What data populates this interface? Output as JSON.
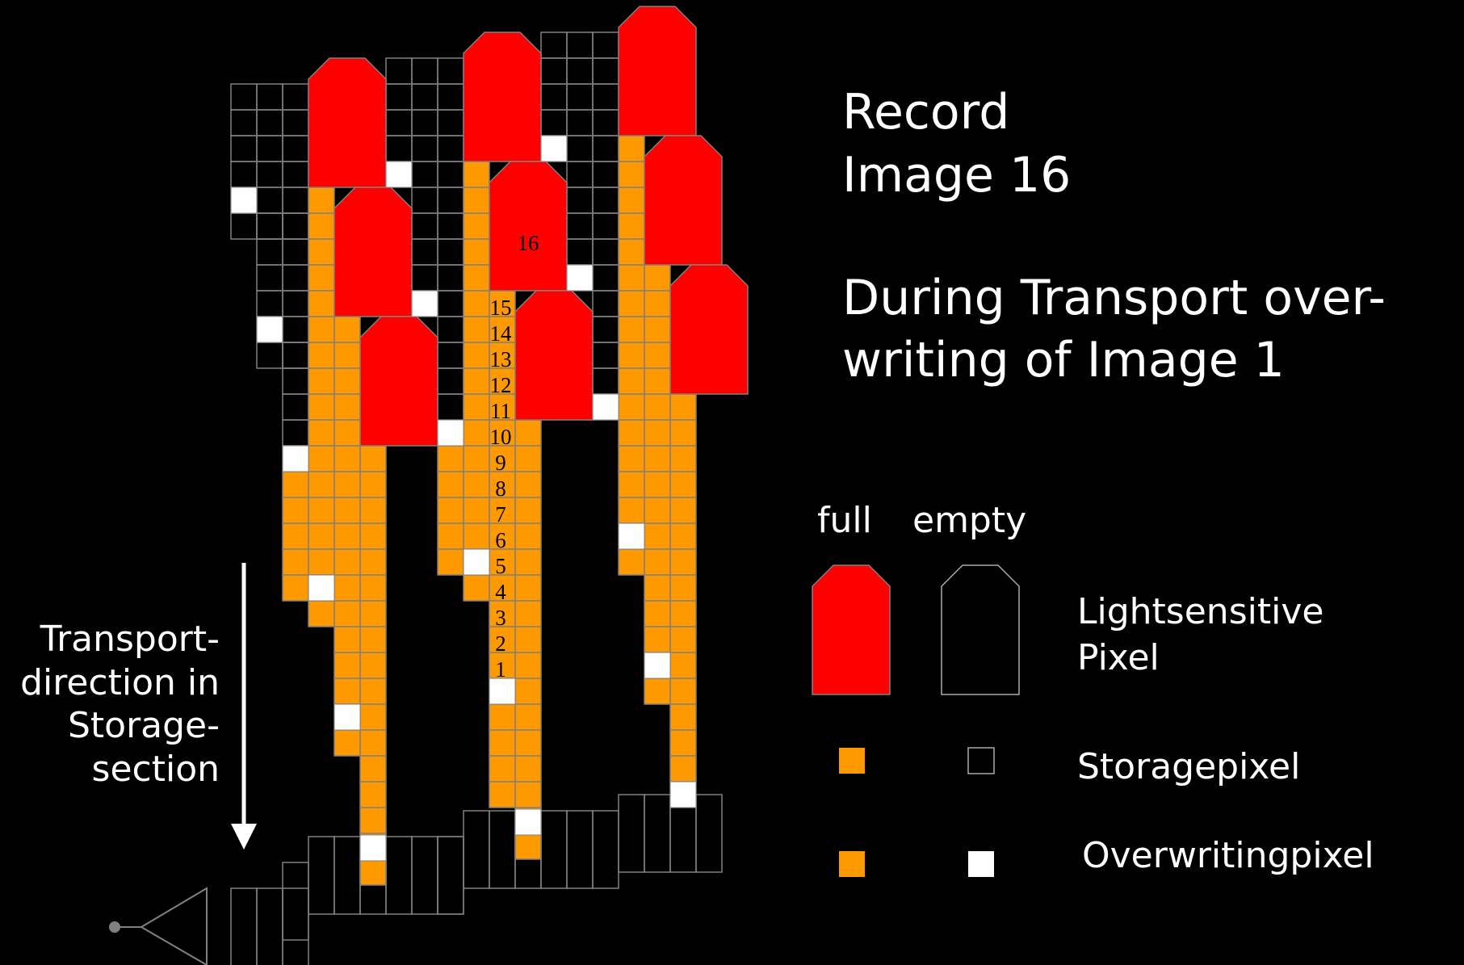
{
  "title": {
    "line1": "Record",
    "line2": "Image 16"
  },
  "description": {
    "line1": "During Transport over-",
    "line2": "writing of Image 1"
  },
  "transport_label": {
    "line1": "Transport-",
    "line2": "direction in",
    "line3": "Storage-",
    "line4": "section"
  },
  "legend": {
    "full": "full",
    "empty": "empty",
    "lightsensitive_line1": "Lightsensitive",
    "lightsensitive_line2": "Pixel",
    "storagepixel": "Storagepixel",
    "overwritingpixel": "Overwritingpixel"
  },
  "current_image_label": "16",
  "storage_counter": [
    "15",
    "14",
    "13",
    "12",
    "11",
    "10",
    "9",
    "8",
    "7",
    "6",
    "5",
    "4",
    "3",
    "2",
    "1"
  ],
  "colors": {
    "full_pixel": "#ff0000",
    "storage_pixel": "#ff9900",
    "overwriting_pixel": "#ffffff",
    "grid": "#808080",
    "background": "#000000",
    "text": "#ffffff"
  }
}
